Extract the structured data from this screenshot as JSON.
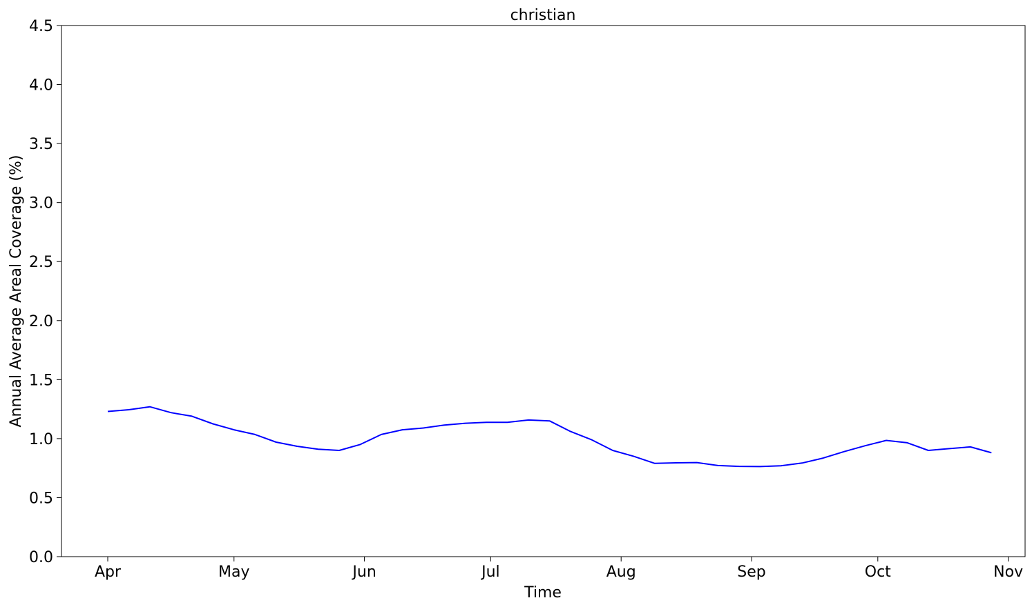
{
  "chart_data": {
    "type": "line",
    "title": "christian",
    "xlabel": "Time",
    "ylabel": "Annual Average Areal Coverage (%)",
    "ylim": [
      0,
      4.5
    ],
    "xlim": [
      "2000-03-21",
      "2000-11-05"
    ],
    "yticks": [
      0.0,
      0.5,
      1.0,
      1.5,
      2.0,
      2.5,
      3.0,
      3.5,
      4.0,
      4.5
    ],
    "ytick_labels": [
      "0.0",
      "0.5",
      "1.0",
      "1.5",
      "2.0",
      "2.5",
      "3.0",
      "3.5",
      "4.0",
      "4.5"
    ],
    "xticks": [
      "2000-04-01",
      "2000-05-01",
      "2000-06-01",
      "2000-07-01",
      "2000-08-01",
      "2000-09-01",
      "2000-10-01",
      "2000-11-01"
    ],
    "xtick_labels": [
      "Apr",
      "May",
      "Jun",
      "Jul",
      "Aug",
      "Sep",
      "Oct",
      "Nov"
    ],
    "grid": false,
    "series": [
      {
        "color": "#0000ff",
        "x": [
          "2000-04-01",
          "2000-04-06",
          "2000-04-11",
          "2000-04-16",
          "2000-04-21",
          "2000-04-26",
          "2000-05-01",
          "2000-05-06",
          "2000-05-11",
          "2000-05-16",
          "2000-05-21",
          "2000-05-26",
          "2000-05-31",
          "2000-06-05",
          "2000-06-10",
          "2000-06-15",
          "2000-06-20",
          "2000-06-25",
          "2000-06-30",
          "2000-07-05",
          "2000-07-10",
          "2000-07-15",
          "2000-07-20",
          "2000-07-25",
          "2000-07-30",
          "2000-08-04",
          "2000-08-09",
          "2000-08-14",
          "2000-08-19",
          "2000-08-24",
          "2000-08-29",
          "2000-09-03",
          "2000-09-08",
          "2000-09-13",
          "2000-09-18",
          "2000-09-23",
          "2000-09-28",
          "2000-10-03",
          "2000-10-08",
          "2000-10-13",
          "2000-10-18",
          "2000-10-23",
          "2000-10-28"
        ],
        "y": [
          1.23,
          1.245,
          1.27,
          1.22,
          1.19,
          1.125,
          1.075,
          1.035,
          0.97,
          0.935,
          0.91,
          0.9,
          0.95,
          1.035,
          1.075,
          1.09,
          1.115,
          1.13,
          1.138,
          1.138,
          1.158,
          1.15,
          1.06,
          0.99,
          0.9,
          0.85,
          0.79,
          0.795,
          0.797,
          0.772,
          0.765,
          0.763,
          0.77,
          0.793,
          0.835,
          0.89,
          0.94,
          0.985,
          0.965,
          0.9,
          0.915,
          0.93,
          0.88
        ]
      }
    ]
  }
}
